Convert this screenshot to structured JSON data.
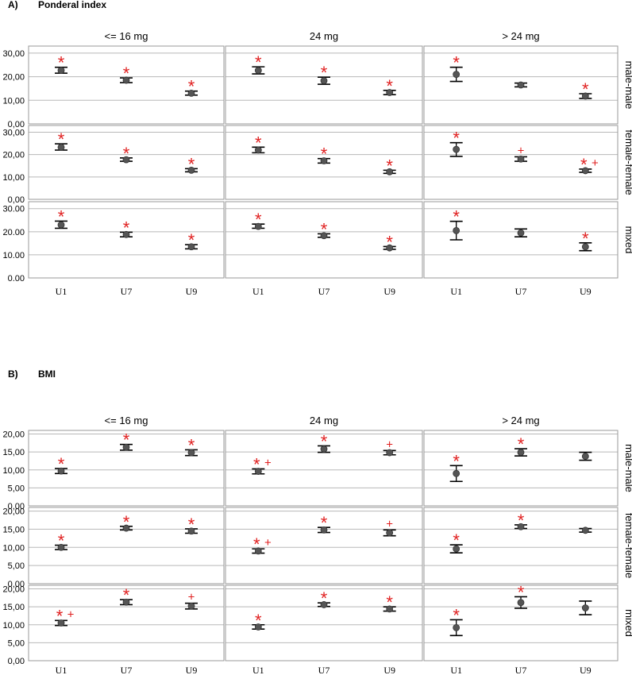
{
  "chart_data": [
    {
      "type": "scatter",
      "panel_label": "A)",
      "title": "Ponderal index",
      "columns": [
        "<= 16 mg",
        "24 mg",
        "> 24 mg"
      ],
      "rows": [
        "male-male",
        "female-female",
        "mixed"
      ],
      "categories": [
        "U1",
        "U7",
        "U9"
      ],
      "yticks": [
        "0,00",
        "10,00",
        "20,00",
        "30,00"
      ],
      "yticks_last_row": [
        "0.00",
        "10.00",
        "20.00",
        "30.00"
      ],
      "ylim": [
        0,
        33
      ],
      "grid": true,
      "cells": [
        [
          {
            "points": [
              {
                "mean": 22.7,
                "lo": 21.5,
                "hi": 24.0,
                "mark": "*"
              },
              {
                "mean": 18.5,
                "lo": 17.5,
                "hi": 19.5,
                "mark": "*"
              },
              {
                "mean": 13.0,
                "lo": 12.2,
                "hi": 13.9,
                "mark": "*"
              }
            ]
          },
          {
            "points": [
              {
                "mean": 22.7,
                "lo": 21.2,
                "hi": 24.2,
                "mark": "*"
              },
              {
                "mean": 18.3,
                "lo": 16.8,
                "hi": 19.8,
                "mark": "*"
              },
              {
                "mean": 13.3,
                "lo": 12.4,
                "hi": 14.2,
                "mark": "*"
              }
            ]
          },
          {
            "points": [
              {
                "mean": 21.0,
                "lo": 18.0,
                "hi": 24.0,
                "mark": "*"
              },
              {
                "mean": 16.5,
                "lo": 15.7,
                "hi": 17.3,
                "mark": ""
              },
              {
                "mean": 11.8,
                "lo": 10.8,
                "hi": 12.8,
                "mark": "*"
              }
            ]
          }
        ],
        [
          {
            "points": [
              {
                "mean": 23.3,
                "lo": 22.0,
                "hi": 24.8,
                "mark": "*"
              },
              {
                "mean": 17.7,
                "lo": 17.0,
                "hi": 18.5,
                "mark": "*"
              },
              {
                "mean": 13.0,
                "lo": 12.3,
                "hi": 13.7,
                "mark": "*"
              }
            ]
          },
          {
            "points": [
              {
                "mean": 22.0,
                "lo": 20.8,
                "hi": 23.3,
                "mark": "*"
              },
              {
                "mean": 17.2,
                "lo": 16.2,
                "hi": 18.2,
                "mark": "*"
              },
              {
                "mean": 12.3,
                "lo": 11.6,
                "hi": 13.0,
                "mark": "*"
              }
            ]
          },
          {
            "points": [
              {
                "mean": 22.3,
                "lo": 19.2,
                "hi": 25.3,
                "mark": "*"
              },
              {
                "mean": 18.0,
                "lo": 17.0,
                "hi": 19.0,
                "mark": "+"
              },
              {
                "mean": 12.8,
                "lo": 12.1,
                "hi": 13.5,
                "mark": "* +"
              }
            ]
          }
        ],
        [
          {
            "points": [
              {
                "mean": 23.0,
                "lo": 21.5,
                "hi": 24.6,
                "mark": "*"
              },
              {
                "mean": 18.8,
                "lo": 17.8,
                "hi": 19.8,
                "mark": "*"
              },
              {
                "mean": 13.5,
                "lo": 12.6,
                "hi": 14.4,
                "mark": "*"
              }
            ]
          },
          {
            "points": [
              {
                "mean": 22.3,
                "lo": 21.5,
                "hi": 23.3,
                "mark": "*"
              },
              {
                "mean": 18.3,
                "lo": 17.6,
                "hi": 19.1,
                "mark": "*"
              },
              {
                "mean": 13.0,
                "lo": 12.4,
                "hi": 13.6,
                "mark": "*"
              }
            ]
          },
          {
            "points": [
              {
                "mean": 20.5,
                "lo": 16.5,
                "hi": 24.5,
                "mark": "*"
              },
              {
                "mean": 19.5,
                "lo": 17.8,
                "hi": 21.2,
                "mark": ""
              },
              {
                "mean": 13.5,
                "lo": 11.8,
                "hi": 15.2,
                "mark": "*"
              }
            ]
          }
        ]
      ]
    },
    {
      "type": "scatter",
      "panel_label": "B)",
      "title": "BMI",
      "columns": [
        "<= 16 mg",
        "24 mg",
        "> 24 mg"
      ],
      "rows": [
        "male-male",
        "female-female",
        "mixed"
      ],
      "categories": [
        "U1",
        "U7",
        "U9"
      ],
      "yticks": [
        "0,00",
        "5,00",
        "10,00",
        "15,00",
        "20,00"
      ],
      "yticks_last_row": [
        "0,00",
        "5,00",
        "10,00",
        "15,00",
        "20,00"
      ],
      "ylim": [
        0,
        21
      ],
      "grid": true,
      "cells": [
        [
          {
            "points": [
              {
                "mean": 9.7,
                "lo": 9.0,
                "hi": 10.4,
                "mark": "*"
              },
              {
                "mean": 16.3,
                "lo": 15.5,
                "hi": 17.1,
                "mark": "*"
              },
              {
                "mean": 14.8,
                "lo": 14.0,
                "hi": 15.6,
                "mark": "*"
              }
            ]
          },
          {
            "points": [
              {
                "mean": 9.6,
                "lo": 8.9,
                "hi": 10.3,
                "mark": "* +"
              },
              {
                "mean": 15.8,
                "lo": 14.9,
                "hi": 16.7,
                "mark": "*"
              },
              {
                "mean": 14.8,
                "lo": 14.2,
                "hi": 15.4,
                "mark": "+"
              }
            ]
          },
          {
            "points": [
              {
                "mean": 9.0,
                "lo": 6.8,
                "hi": 11.2,
                "mark": "*"
              },
              {
                "mean": 14.9,
                "lo": 13.9,
                "hi": 15.9,
                "mark": "*"
              },
              {
                "mean": 13.8,
                "lo": 12.7,
                "hi": 14.9,
                "mark": ""
              }
            ]
          }
        ],
        [
          {
            "points": [
              {
                "mean": 10.0,
                "lo": 9.4,
                "hi": 10.6,
                "mark": "*"
              },
              {
                "mean": 15.3,
                "lo": 14.8,
                "hi": 15.8,
                "mark": "*"
              },
              {
                "mean": 14.5,
                "lo": 13.9,
                "hi": 15.1,
                "mark": "*"
              }
            ]
          },
          {
            "points": [
              {
                "mean": 9.0,
                "lo": 8.4,
                "hi": 9.6,
                "mark": "* +"
              },
              {
                "mean": 14.8,
                "lo": 14.1,
                "hi": 15.5,
                "mark": "*"
              },
              {
                "mean": 14.0,
                "lo": 13.2,
                "hi": 14.8,
                "mark": "+"
              }
            ]
          },
          {
            "points": [
              {
                "mean": 9.6,
                "lo": 8.5,
                "hi": 10.7,
                "mark": "*"
              },
              {
                "mean": 15.7,
                "lo": 15.2,
                "hi": 16.2,
                "mark": "*"
              },
              {
                "mean": 14.7,
                "lo": 14.2,
                "hi": 15.2,
                "mark": ""
              }
            ]
          }
        ],
        [
          {
            "points": [
              {
                "mean": 10.5,
                "lo": 9.8,
                "hi": 11.2,
                "mark": "* +"
              },
              {
                "mean": 16.3,
                "lo": 15.6,
                "hi": 17.0,
                "mark": "*"
              },
              {
                "mean": 15.2,
                "lo": 14.4,
                "hi": 16.0,
                "mark": "+"
              }
            ]
          },
          {
            "points": [
              {
                "mean": 9.4,
                "lo": 8.8,
                "hi": 10.0,
                "mark": "*"
              },
              {
                "mean": 15.6,
                "lo": 15.1,
                "hi": 16.1,
                "mark": "*"
              },
              {
                "mean": 14.4,
                "lo": 13.8,
                "hi": 15.0,
                "mark": "*"
              }
            ]
          },
          {
            "points": [
              {
                "mean": 9.2,
                "lo": 7.0,
                "hi": 11.4,
                "mark": "*"
              },
              {
                "mean": 16.2,
                "lo": 14.6,
                "hi": 17.8,
                "mark": "*"
              },
              {
                "mean": 14.7,
                "lo": 12.8,
                "hi": 16.6,
                "mark": ""
              }
            ]
          }
        ]
      ]
    }
  ],
  "colors": {
    "annotation": "#e02020",
    "marker": "#555555",
    "errorbar": "#000000",
    "grid": "#b8b8b8",
    "frame": "#9a9a9a"
  }
}
